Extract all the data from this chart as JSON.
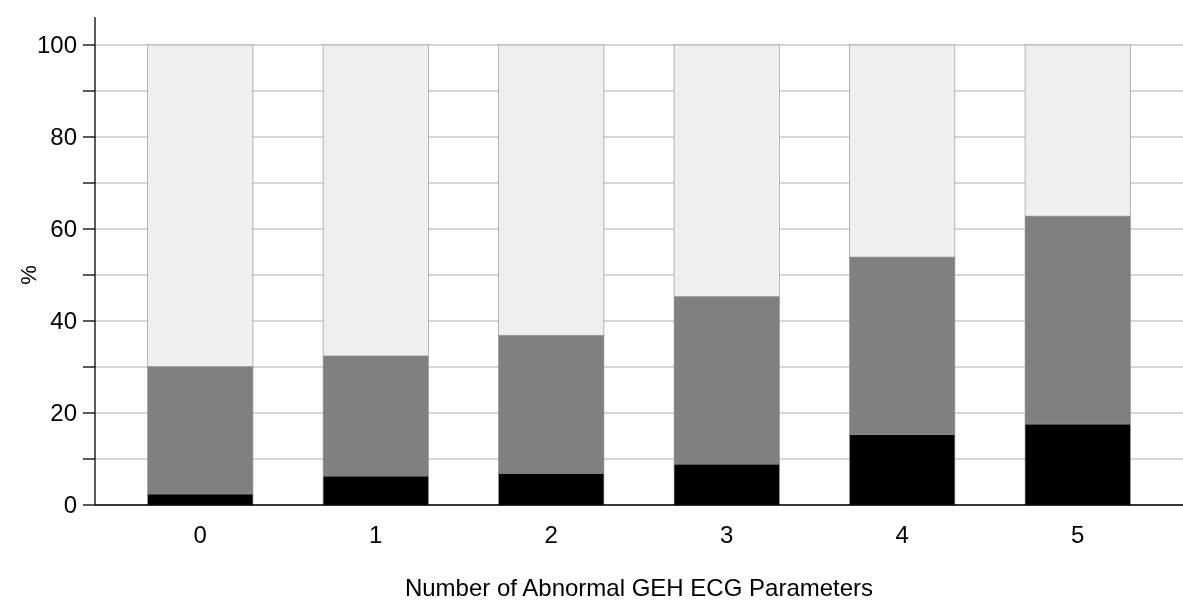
{
  "chart_data": {
    "type": "bar",
    "stacked": true,
    "xlabel": "Number of Abnormal GEH ECG Parameters",
    "ylabel": "%",
    "categories": [
      "0",
      "1",
      "2",
      "3",
      "4",
      "5"
    ],
    "series": [
      {
        "color": "#000000",
        "values": [
          2.4,
          6.3,
          6.9,
          8.9,
          15.3,
          17.6
        ]
      },
      {
        "color": "#808080",
        "values": [
          27.7,
          26.1,
          30,
          36.4,
          38.6,
          45.2
        ]
      },
      {
        "color": "#efefef",
        "values": [
          69.9,
          67.6,
          63.1,
          54.7,
          46.1,
          37.2
        ]
      }
    ],
    "ylim": [
      0,
      100
    ],
    "yticks": [
      0,
      {
        "value": 10,
        "label": null
      },
      20,
      {
        "value": 30,
        "label": null
      },
      40,
      {
        "value": 50,
        "label": null
      },
      60,
      {
        "value": 70,
        "label": null
      },
      80,
      {
        "value": 90,
        "label": null
      },
      100
    ],
    "grid": "y"
  }
}
